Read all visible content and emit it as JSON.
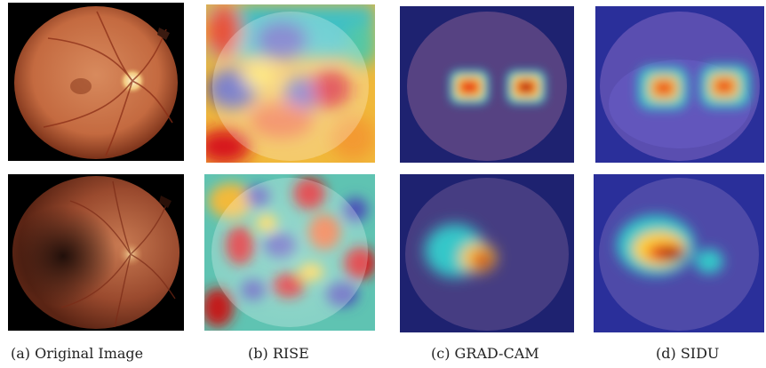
{
  "figure": {
    "captions": [
      "(a) Original Image",
      "(b) RISE",
      "(c) GRAD-CAM",
      "(d) SIDU"
    ],
    "colors": {
      "background": "#ffffff",
      "fundus_dark": "#5a2414",
      "fundus_orange": "#c9714a",
      "heat_red": "#d7191c",
      "heat_yellow": "#ffd23a",
      "heat_cyan": "#35c7c9",
      "heat_blue": "#3a3fb5",
      "cam_background": "#2a2f86"
    }
  }
}
